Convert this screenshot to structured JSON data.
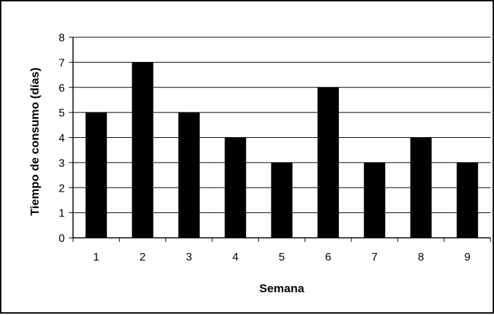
{
  "chart_data": {
    "type": "bar",
    "categories": [
      "1",
      "2",
      "3",
      "4",
      "5",
      "6",
      "7",
      "8",
      "9"
    ],
    "values": [
      5,
      7,
      5,
      4,
      3,
      6,
      3,
      4,
      3
    ],
    "title": "",
    "xlabel": "Semana",
    "ylabel": "Tiempo de consumo (días)",
    "ylim": [
      0,
      8
    ],
    "yticks": [
      0,
      1,
      2,
      3,
      4,
      5,
      6,
      7,
      8
    ],
    "grid": true,
    "legend": "none",
    "bar_color": "#000000",
    "grid_color": "#000000"
  }
}
